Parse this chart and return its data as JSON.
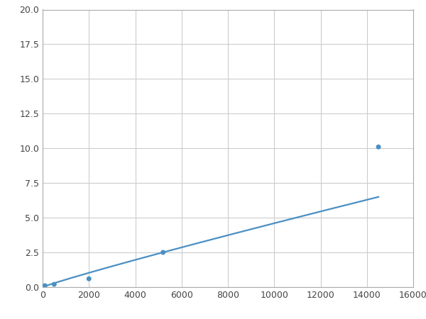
{
  "x": [
    100,
    500,
    2000,
    5200,
    14500
  ],
  "y": [
    0.1,
    0.2,
    0.6,
    2.5,
    10.1
  ],
  "line_color": "#4a8fc4",
  "marker_color": "#4a8fc4",
  "marker_size": 5,
  "line_width": 1.6,
  "xlim": [
    0,
    16000
  ],
  "ylim": [
    0,
    20
  ],
  "xticks": [
    0,
    2000,
    4000,
    6000,
    8000,
    10000,
    12000,
    14000,
    16000
  ],
  "yticks": [
    0.0,
    2.5,
    5.0,
    7.5,
    10.0,
    12.5,
    15.0,
    17.5,
    20.0
  ],
  "grid_color": "#cccccc",
  "background_color": "#ffffff",
  "figure_bg": "#ffffff"
}
